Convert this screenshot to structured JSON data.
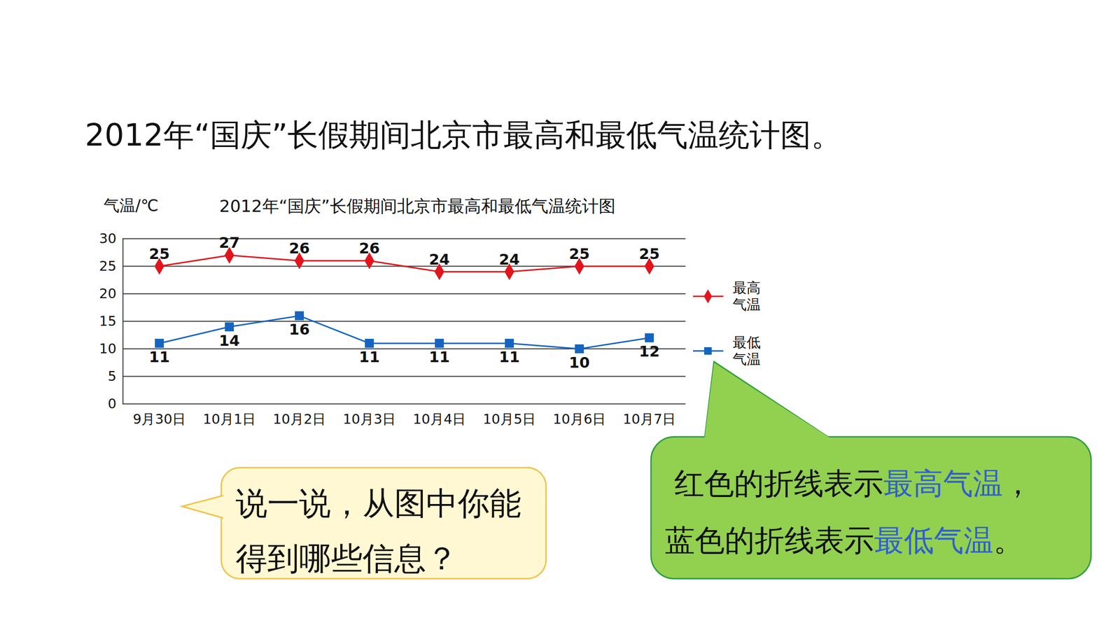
{
  "chart_data": {
    "type": "line",
    "title": "2012年“国庆”长假期间北京市最高和最低气温统计图",
    "y_label": "气温/℃",
    "categories": [
      "9月30日",
      "10月1日",
      "10月2日",
      "10月3日",
      "10月4日",
      "10月5日",
      "10月6日",
      "10月7日"
    ],
    "series": [
      {
        "name": "最高气温",
        "color": "#e3141c",
        "marker": "diamond",
        "values": [
          25,
          27,
          26,
          26,
          24,
          24,
          25,
          25
        ]
      },
      {
        "name": "最低气温",
        "color": "#1565c0",
        "marker": "square",
        "values": [
          11,
          14,
          16,
          11,
          11,
          11,
          10,
          12
        ]
      }
    ],
    "ylim": [
      0,
      30
    ],
    "yticks": [
      0,
      5,
      10,
      15,
      20,
      25,
      30
    ],
    "grid": true,
    "data_labels": true,
    "legend": "right",
    "annotations": [
      "2012年“国庆”长假期间北京市最高和最低气温统计图。",
      "说一说，从图中你能得到哪些信息？",
      "红色的折线表示最高气温，蓝色的折线表示最低气温。"
    ]
  }
}
